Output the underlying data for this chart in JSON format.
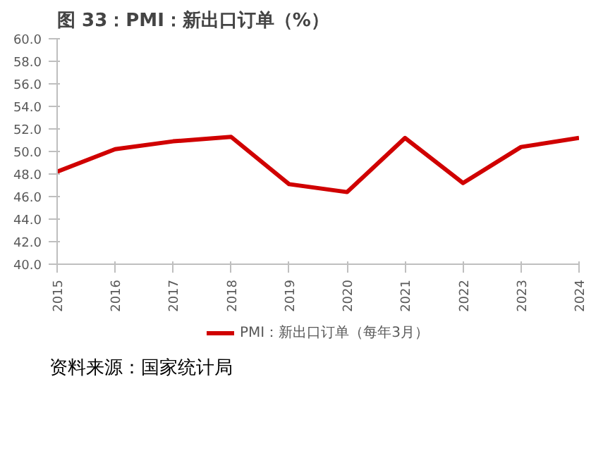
{
  "chart_data": {
    "type": "line",
    "title": "图 33：PMI：新出口订单（%）",
    "categories": [
      "2015",
      "2016",
      "2017",
      "2018",
      "2019",
      "2020",
      "2021",
      "2022",
      "2023",
      "2024"
    ],
    "series": [
      {
        "name": "PMI：新出口订单（每年3月）",
        "color": "#d00000",
        "values": [
          48.2,
          50.2,
          50.9,
          51.3,
          47.1,
          46.4,
          51.2,
          47.2,
          50.4,
          51.2
        ]
      }
    ],
    "ylim": [
      40,
      60
    ],
    "yticks": [
      {
        "value": 40,
        "label": "40.0"
      },
      {
        "value": 42,
        "label": "42.0"
      },
      {
        "value": 44,
        "label": "44.0"
      },
      {
        "value": 46,
        "label": "46.0"
      },
      {
        "value": 48,
        "label": "48.0"
      },
      {
        "value": 50,
        "label": "50.0"
      },
      {
        "value": 52,
        "label": "52.0"
      },
      {
        "value": 54,
        "label": "54.0"
      },
      {
        "value": 56,
        "label": "56.0"
      },
      {
        "value": 58,
        "label": "58.0"
      },
      {
        "value": 60,
        "label": "60.0"
      }
    ],
    "grid": false,
    "legend": "bottom",
    "annotations": [
      "资料来源：国家统计局"
    ]
  }
}
